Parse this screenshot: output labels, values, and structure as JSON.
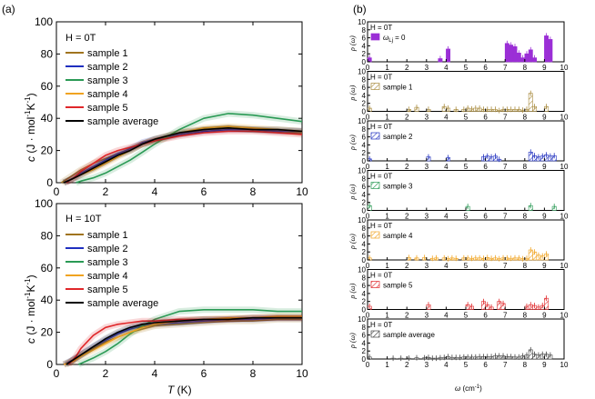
{
  "figure": {
    "panel_a_label": "(a)",
    "panel_b_label": "(b)"
  },
  "chart_data": [
    {
      "type": "line",
      "panel": "a-top",
      "field_label": "H = 0T",
      "ylabel": "c (J · mol⁻¹K⁻¹)",
      "ylabel_italic": "c",
      "ylabel_rest": " (J · mol",
      "ylabel_sup1": "-1",
      "ylabel_mid": "K",
      "ylabel_sup2": "-1",
      "ylabel_end": ")",
      "xlim": [
        0,
        10
      ],
      "ylim": [
        0,
        100
      ],
      "xticks": [
        "0",
        "2",
        "4",
        "6",
        "8",
        "10"
      ],
      "yticks": [
        "0",
        "20",
        "40",
        "60",
        "80",
        "100"
      ],
      "legend_position": "top-left",
      "series": [
        {
          "name": "sample 1",
          "color": "#a0741e",
          "x": [
            0.2,
            0.6,
            1,
            1.5,
            2,
            2.5,
            3,
            3.5,
            4,
            5,
            6,
            7,
            8,
            9,
            10
          ],
          "y": [
            0,
            4,
            8,
            12,
            15,
            18,
            21,
            24,
            26,
            30,
            33,
            34,
            33,
            32,
            31
          ]
        },
        {
          "name": "sample 2",
          "color": "#1f2fbf",
          "x": [
            0.3,
            0.7,
            1,
            1.5,
            2,
            2.5,
            3,
            3.5,
            4,
            5,
            6,
            7,
            8,
            9,
            10
          ],
          "y": [
            0,
            3,
            6,
            10,
            14,
            18,
            21,
            25,
            27,
            30,
            32,
            33,
            33,
            32,
            32
          ]
        },
        {
          "name": "sample 3",
          "color": "#2a9a55",
          "x": [
            0.8,
            1,
            1.5,
            2,
            2.5,
            3,
            3.5,
            4,
            5,
            6,
            7,
            8,
            9,
            10
          ],
          "y": [
            0,
            1,
            3,
            6,
            10,
            14,
            19,
            24,
            33,
            40,
            43,
            42,
            40,
            38
          ]
        },
        {
          "name": "sample 4",
          "color": "#f0a320",
          "x": [
            0.3,
            0.6,
            1,
            1.5,
            2,
            2.5,
            3,
            3.5,
            4,
            5,
            6,
            7,
            8,
            9,
            10
          ],
          "y": [
            0,
            2,
            5,
            8,
            12,
            16,
            20,
            24,
            27,
            31,
            34,
            35,
            34,
            33,
            32
          ]
        },
        {
          "name": "sample 5",
          "color": "#e0272a",
          "x": [
            0.4,
            0.7,
            1,
            1.5,
            2,
            2.5,
            3,
            3.5,
            4,
            5,
            6,
            7,
            8,
            9,
            10
          ],
          "y": [
            0,
            3,
            7,
            12,
            17,
            20,
            22,
            24,
            26,
            29,
            31,
            32,
            32,
            31,
            30
          ]
        },
        {
          "name": "sample average",
          "color": "#000000",
          "x": [
            0.3,
            0.6,
            1,
            1.5,
            2,
            2.5,
            3,
            3.5,
            4,
            5,
            6,
            7,
            8,
            9,
            10
          ],
          "y": [
            0,
            2,
            5,
            9,
            13,
            17,
            20,
            24,
            27,
            31,
            33,
            34,
            33,
            33,
            32
          ]
        }
      ]
    },
    {
      "type": "line",
      "panel": "a-bottom",
      "field_label": "H = 10T",
      "ylabel_italic": "c",
      "ylabel_rest": " (J · mol",
      "ylabel_sup1": "-1",
      "ylabel_mid": "K",
      "ylabel_sup2": "-1",
      "ylabel_end": ")",
      "xlabel_italic": "T",
      "xlabel_rest": " (K)",
      "xlim": [
        0,
        10
      ],
      "ylim": [
        0,
        100
      ],
      "xticks": [
        "0",
        "2",
        "4",
        "6",
        "8",
        "10"
      ],
      "yticks": [
        "0",
        "20",
        "40",
        "60",
        "80",
        "100"
      ],
      "legend_position": "top-left",
      "series": [
        {
          "name": "sample 1",
          "color": "#a0741e",
          "x": [
            0.3,
            0.7,
            1,
            1.5,
            2,
            2.5,
            3,
            3.5,
            4,
            5,
            6,
            7,
            8,
            9,
            10
          ],
          "y": [
            0,
            3,
            6,
            10,
            14,
            17,
            20,
            22,
            24,
            25,
            26,
            27,
            27,
            28,
            28
          ]
        },
        {
          "name": "sample 2",
          "color": "#1f2fbf",
          "x": [
            0.3,
            0.7,
            1,
            1.5,
            2,
            2.5,
            3,
            3.5,
            4,
            5,
            6,
            7,
            8,
            9,
            10
          ],
          "y": [
            0,
            3,
            6,
            11,
            15,
            19,
            22,
            24,
            25,
            26,
            27,
            28,
            28,
            29,
            29
          ]
        },
        {
          "name": "sample 3",
          "color": "#2a9a55",
          "x": [
            0.9,
            1.2,
            1.5,
            2,
            2.5,
            3,
            3.5,
            4,
            5,
            6,
            7,
            8,
            9,
            10
          ],
          "y": [
            0,
            2,
            4,
            8,
            13,
            19,
            24,
            28,
            33,
            34,
            34,
            34,
            33,
            33
          ]
        },
        {
          "name": "sample 4",
          "color": "#f0a320",
          "x": [
            0.3,
            0.7,
            1,
            1.5,
            2,
            2.5,
            3,
            3.5,
            4,
            5,
            6,
            7,
            8,
            9,
            10
          ],
          "y": [
            0,
            2,
            5,
            9,
            13,
            17,
            20,
            23,
            25,
            27,
            28,
            29,
            29,
            30,
            30
          ]
        },
        {
          "name": "sample 5",
          "color": "#e0272a",
          "x": [
            0.5,
            0.8,
            1,
            1.5,
            2,
            2.5,
            3,
            3.5,
            4,
            5,
            6,
            7,
            8,
            9,
            10
          ],
          "y": [
            0,
            5,
            10,
            18,
            23,
            25,
            26,
            27,
            27,
            28,
            28,
            28,
            29,
            29,
            29
          ]
        },
        {
          "name": "sample average",
          "color": "#000000",
          "x": [
            0.4,
            0.7,
            1,
            1.5,
            2,
            2.5,
            3,
            3.5,
            4,
            5,
            6,
            7,
            8,
            9,
            10
          ],
          "y": [
            0,
            3,
            6,
            11,
            16,
            20,
            23,
            25,
            26,
            27,
            28,
            28,
            29,
            29,
            29
          ]
        }
      ]
    },
    {
      "type": "bar",
      "panel": "b",
      "xlabel": "ω (cm⁻¹)",
      "xlabel_omega": "ω",
      "xlabel_rest": " (cm",
      "xlabel_sup": "-1",
      "xlabel_end": ")",
      "ylabel": "ρ (ω)",
      "xlim": [
        0,
        10
      ],
      "ylim": [
        0,
        10
      ],
      "xticks": [
        "0",
        "1",
        "2",
        "3",
        "4",
        "5",
        "6",
        "7",
        "8",
        "9",
        "10"
      ],
      "yticks": [
        "0",
        "2",
        "4",
        "6",
        "8",
        "10"
      ],
      "bin_centers": [
        0.1,
        0.3,
        0.5,
        0.7,
        0.9,
        1.1,
        1.3,
        1.5,
        1.7,
        1.9,
        2.1,
        2.3,
        2.5,
        2.7,
        2.9,
        3.1,
        3.3,
        3.5,
        3.7,
        3.9,
        4.1,
        4.3,
        4.5,
        4.7,
        4.9,
        5.1,
        5.3,
        5.5,
        5.7,
        5.9,
        6.1,
        6.3,
        6.5,
        6.7,
        6.9,
        7.1,
        7.3,
        7.5,
        7.7,
        7.9,
        8.1,
        8.3,
        8.5,
        8.7,
        8.9,
        9.1,
        9.3,
        9.5,
        9.7,
        9.9
      ],
      "rows": [
        {
          "field_label": "H = 0T",
          "legend": "ω",
          "legend_sub": "Lj",
          "legend_eq": " = 0",
          "color": "#9b2fd6",
          "fill": "solid",
          "values": [
            1.0,
            0,
            0,
            0,
            0,
            0,
            0,
            0,
            0,
            0,
            0,
            0,
            0,
            0,
            0,
            0,
            0,
            0,
            0.8,
            0,
            3.2,
            0,
            0,
            0,
            0,
            0,
            0,
            0,
            0,
            0,
            0,
            0,
            0,
            0,
            0,
            4.6,
            4.2,
            3.8,
            2.2,
            1.0,
            2.0,
            3.0,
            1.0,
            0,
            0,
            6.5,
            5.6,
            0,
            0,
            0
          ]
        },
        {
          "field_label": "H = 0T",
          "legend": "sample 1",
          "color": "#a88a3c",
          "fill": "hatch",
          "values": [
            0.8,
            0,
            0,
            0,
            0,
            0,
            0,
            0,
            0,
            0,
            0.5,
            0,
            1.0,
            0,
            0,
            0.5,
            0,
            0,
            0,
            1.2,
            0.8,
            0,
            0.5,
            0,
            0.5,
            0.8,
            0.6,
            0.8,
            0.8,
            0.5,
            0.5,
            0.5,
            0.5,
            0.2,
            0.5,
            0.5,
            0.5,
            0.5,
            0.5,
            0.3,
            0.5,
            4.5,
            1.2,
            0,
            0,
            1.2,
            0,
            0,
            0,
            0
          ]
        },
        {
          "field_label": "H = 0T",
          "legend": "sample 2",
          "color": "#1f2fbf",
          "fill": "hatch",
          "values": [
            0.5,
            0,
            0,
            0,
            0,
            0,
            0,
            0,
            0,
            0,
            0,
            0,
            0,
            0,
            0,
            1.0,
            0,
            0,
            0,
            0,
            0.8,
            0,
            0,
            0,
            0,
            0,
            0,
            0,
            0,
            1.0,
            1.2,
            1.0,
            1.2,
            0.4,
            0,
            0,
            0,
            0,
            0,
            0,
            0,
            2.2,
            1.3,
            1.0,
            1.2,
            1.5,
            1.2,
            1.3,
            0,
            0
          ]
        },
        {
          "field_label": "H = 0T",
          "legend": "sample 3",
          "color": "#2a9a55",
          "fill": "hatch",
          "values": [
            1.2,
            0,
            0,
            0,
            0,
            0,
            0,
            0,
            0,
            0,
            0,
            0,
            0,
            0,
            0,
            0,
            0,
            0,
            0,
            0,
            0,
            0,
            0,
            0,
            0,
            1.0,
            0,
            0,
            0,
            0,
            0,
            0,
            0,
            0,
            0,
            0,
            0,
            0,
            0,
            0,
            0,
            1.2,
            0,
            0,
            0,
            0,
            0,
            1.0,
            0,
            0
          ]
        },
        {
          "field_label": "H = 0T",
          "legend": "sample 4",
          "color": "#f0a320",
          "fill": "hatch",
          "values": [
            0.5,
            0,
            0,
            0,
            0,
            0,
            0,
            0,
            0,
            0,
            0.6,
            0,
            0.5,
            0,
            0.6,
            0,
            0.4,
            0.5,
            0,
            0.5,
            0.3,
            0.5,
            0.4,
            0,
            0.5,
            0.5,
            0.4,
            0.5,
            0.5,
            0.4,
            0.6,
            0.4,
            0.5,
            0.3,
            0.5,
            0.5,
            0.4,
            0.5,
            0.5,
            0.3,
            0.4,
            2.5,
            2.0,
            1.2,
            1.0,
            1.5,
            0,
            0,
            0,
            0
          ]
        },
        {
          "field_label": "H = 0T",
          "legend": "sample 5",
          "color": "#e0272a",
          "fill": "hatch",
          "values": [
            0.8,
            0,
            0,
            0,
            0,
            0,
            0,
            0,
            0,
            0,
            0,
            0,
            0,
            0,
            0,
            1.2,
            0,
            0,
            0,
            0,
            0,
            0,
            0,
            0,
            0,
            1.2,
            0.8,
            0,
            0,
            2.0,
            1.2,
            0.6,
            0,
            2.0,
            1.5,
            0,
            0,
            0,
            0,
            0,
            0.8,
            1.2,
            1.0,
            0.6,
            1.0,
            2.8,
            0,
            0,
            0,
            0
          ]
        },
        {
          "field_label": "H = 0T",
          "legend": "sample average",
          "color": "#444444",
          "fill": "hatch",
          "values": [
            0.5,
            0,
            0,
            0,
            0,
            0,
            0.2,
            0,
            0.2,
            0,
            0.2,
            0,
            0.3,
            0,
            0.3,
            0.4,
            0.2,
            0.2,
            0.3,
            0.4,
            0.6,
            0.4,
            0.4,
            0.4,
            0.5,
            0.5,
            0.5,
            0.5,
            0.6,
            0.6,
            0.6,
            0.6,
            0.8,
            0.8,
            0.8,
            0.6,
            0.6,
            0.5,
            0.5,
            0.8,
            1.0,
            2.3,
            1.2,
            1.0,
            1.2,
            1.2,
            1.0,
            0,
            0,
            0
          ]
        }
      ]
    }
  ]
}
